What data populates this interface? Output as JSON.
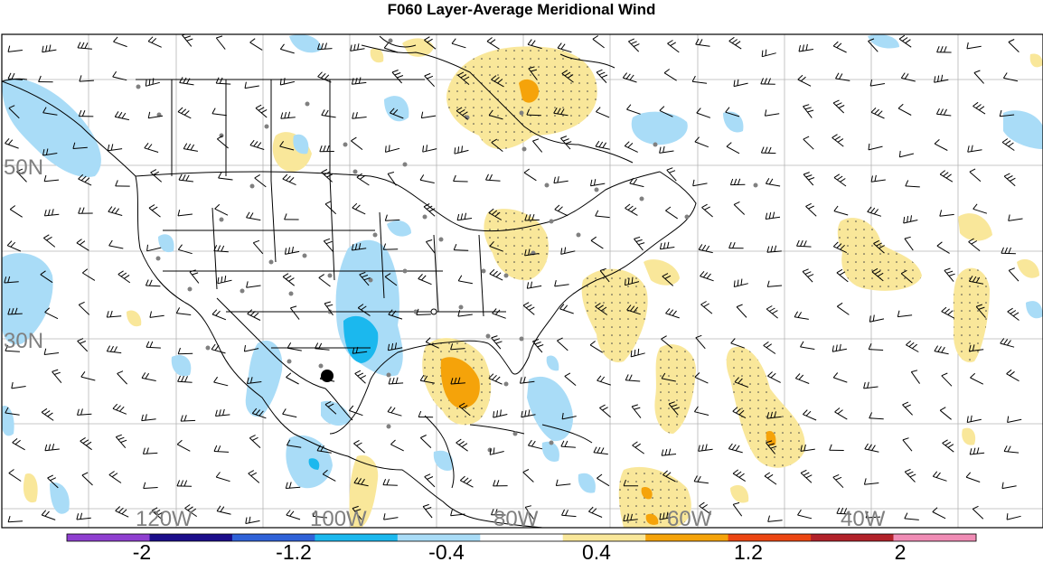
{
  "title": "F060 Layer-Average Meridional Wind",
  "map": {
    "lat_labels": [
      "50N",
      "30N"
    ],
    "lon_labels": [
      "120W",
      "100W",
      "80W",
      "60W",
      "40W"
    ]
  },
  "colorbar": {
    "tick_labels": [
      "-2",
      "-1.2",
      "-0.4",
      "0.4",
      "1.2",
      "2"
    ],
    "colors": [
      "#8f3fd0",
      "#1b0d8a",
      "#2f62d8",
      "#1bb8ee",
      "#a9dcf7",
      "#ffffff",
      "#f9e79a",
      "#f5a30a",
      "#ec4612",
      "#b2222a",
      "#f08cb5"
    ]
  },
  "palette": {
    "positive_light": "#f9e79a",
    "positive_mid": "#f5a30a",
    "negative_light": "#a9dcf7",
    "negative_mid": "#1bb8ee",
    "station": "#808080",
    "grid": "#b0b0b0"
  }
}
